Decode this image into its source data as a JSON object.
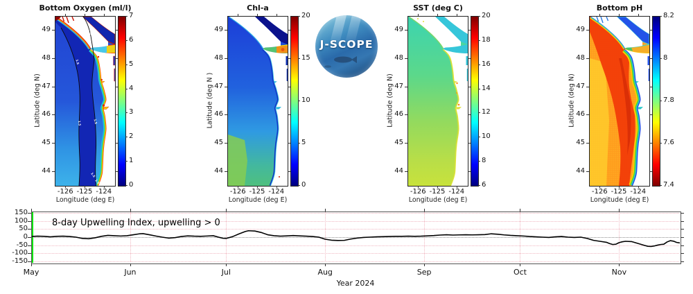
{
  "logo": {
    "text": "J-SCOPE"
  },
  "colors": {
    "jet_colormap": [
      "#00007f",
      "#0000ff",
      "#00ffff",
      "#ffff00",
      "#ff0000",
      "#7f0000"
    ],
    "jet_positions": [
      0,
      12.5,
      37.5,
      62.5,
      87.5,
      100
    ],
    "series_line": "#000000",
    "forecast_start_green": "#00e400",
    "grid_pink": "#f1b6c0",
    "zero_line_gray": "#8c8c8c",
    "axis": "#333333",
    "land": "#ffffff"
  },
  "chart_data": [
    {
      "type": "heatmap",
      "title": "Bottom Oxygen (ml/l)",
      "xlabel": "Longitude (deg E)",
      "ylabel": "Latitude (deg N)",
      "xticks": [
        -126,
        -125,
        -124
      ],
      "yticks": [
        49,
        48,
        47,
        46,
        45,
        44
      ],
      "xlim": [
        -126.55,
        -123.45
      ],
      "ylim": [
        43.5,
        49.5
      ],
      "contour_labels": [
        "1.5"
      ],
      "colorbar": {
        "min": 0,
        "max": 7,
        "tick_values": [
          0,
          1,
          2,
          3,
          4,
          5,
          6,
          7
        ],
        "tick_labels": [
          "0",
          "1",
          "2",
          "3",
          "4",
          "5",
          "6",
          "7"
        ],
        "colormap": "jet",
        "reversed": false
      }
    },
    {
      "type": "heatmap",
      "title": "Chl-a",
      "xlabel": "Longitude (deg E)",
      "ylabel": "Latitude (deg N )",
      "xticks": [
        -126,
        -125,
        -124
      ],
      "yticks": [
        49,
        48,
        47,
        46,
        45,
        44
      ],
      "xlim": [
        -126.55,
        -123.45
      ],
      "ylim": [
        43.5,
        49.5
      ],
      "colorbar": {
        "min": 0,
        "max": 20,
        "tick_values": [
          0,
          5,
          10,
          15,
          20
        ],
        "tick_labels": [
          "0",
          "5",
          "10",
          "15",
          "20"
        ],
        "colormap": "jet",
        "reversed": false
      }
    },
    {
      "type": "heatmap",
      "title": "SST (deg C)",
      "xlabel": "Longitude (deg E)",
      "ylabel": "Latitude (deg N)",
      "xticks": [
        -126,
        -125,
        -124
      ],
      "yticks": [
        49,
        48,
        47,
        46,
        45,
        44
      ],
      "xlim": [
        -126.55,
        -123.45
      ],
      "ylim": [
        43.5,
        49.5
      ],
      "colorbar": {
        "min": 6,
        "max": 20,
        "tick_values": [
          6,
          8,
          10,
          12,
          14,
          16,
          18,
          20
        ],
        "tick_labels": [
          "6",
          "8",
          "10",
          "12",
          "14",
          "16",
          "18",
          "20"
        ],
        "colormap": "jet",
        "reversed": false
      }
    },
    {
      "type": "heatmap",
      "title": "Bottom pH",
      "xlabel": "Longitude (deg E)",
      "ylabel": "Latitude (deg N)",
      "xticks": [
        -126,
        -125,
        -124
      ],
      "yticks": [
        49,
        48,
        47,
        46,
        45,
        44
      ],
      "xlim": [
        -126.55,
        -123.45
      ],
      "ylim": [
        43.5,
        49.5
      ],
      "colorbar": {
        "min": 7.4,
        "max": 8.2,
        "tick_values": [
          7.4,
          7.6,
          7.8,
          8,
          8.2
        ],
        "tick_labels": [
          "7.4",
          "7.6",
          "7.8",
          "8",
          "8.2"
        ],
        "colormap": "jet",
        "reversed": true
      }
    },
    {
      "type": "line",
      "title": "8-day Upwelling Index, upwelling > 0",
      "xlabel": "Year 2024",
      "x_tick_labels": [
        "May",
        "Jun",
        "Jul",
        "Aug",
        "Sep",
        "Oct",
        "Nov"
      ],
      "x_tick_days": [
        0,
        31,
        61,
        92,
        123,
        153,
        184
      ],
      "x_range_days": [
        0,
        203
      ],
      "yticks": [
        150,
        100,
        50,
        0,
        -50,
        -100,
        -150
      ],
      "ylim": [
        -160,
        160
      ],
      "zero_line_dotted": true,
      "forecast_start_day": 0,
      "series": [
        {
          "name": "8-day Upwelling Index",
          "points": [
            [
              0,
              4
            ],
            [
              2,
              6
            ],
            [
              4,
              5
            ],
            [
              6,
              2
            ],
            [
              8,
              5
            ],
            [
              10,
              6
            ],
            [
              12,
              4
            ],
            [
              14,
              0
            ],
            [
              16,
              -8
            ],
            [
              18,
              -10
            ],
            [
              20,
              -4
            ],
            [
              22,
              5
            ],
            [
              24,
              11
            ],
            [
              26,
              9
            ],
            [
              28,
              7
            ],
            [
              30,
              9
            ],
            [
              32,
              15
            ],
            [
              34,
              21
            ],
            [
              35,
              22
            ],
            [
              37,
              15
            ],
            [
              39,
              7
            ],
            [
              41,
              0
            ],
            [
              43,
              -6
            ],
            [
              45,
              -3
            ],
            [
              47,
              4
            ],
            [
              49,
              8
            ],
            [
              51,
              6
            ],
            [
              53,
              5
            ],
            [
              55,
              7
            ],
            [
              57,
              9
            ],
            [
              59,
              -2
            ],
            [
              60,
              -7
            ],
            [
              61,
              -8
            ],
            [
              63,
              3
            ],
            [
              65,
              20
            ],
            [
              67,
              35
            ],
            [
              68,
              40
            ],
            [
              70,
              38
            ],
            [
              72,
              29
            ],
            [
              74,
              15
            ],
            [
              76,
              9
            ],
            [
              78,
              6
            ],
            [
              80,
              8
            ],
            [
              82,
              10
            ],
            [
              84,
              8
            ],
            [
              86,
              6
            ],
            [
              88,
              4
            ],
            [
              90,
              0
            ],
            [
              92,
              -13
            ],
            [
              94,
              -19
            ],
            [
              96,
              -21
            ],
            [
              98,
              -20
            ],
            [
              100,
              -12
            ],
            [
              102,
              -6
            ],
            [
              104,
              -2
            ],
            [
              106,
              0
            ],
            [
              108,
              2
            ],
            [
              110,
              3
            ],
            [
              112,
              4
            ],
            [
              114,
              5
            ],
            [
              116,
              5
            ],
            [
              118,
              6
            ],
            [
              120,
              5
            ],
            [
              122,
              6
            ],
            [
              124,
              8
            ],
            [
              126,
              10
            ],
            [
              128,
              13
            ],
            [
              130,
              15
            ],
            [
              132,
              13
            ],
            [
              134,
              14
            ],
            [
              136,
              15
            ],
            [
              138,
              14
            ],
            [
              140,
              15
            ],
            [
              142,
              16
            ],
            [
              144,
              21
            ],
            [
              146,
              18
            ],
            [
              148,
              14
            ],
            [
              150,
              11
            ],
            [
              152,
              9
            ],
            [
              154,
              7
            ],
            [
              156,
              4
            ],
            [
              158,
              2
            ],
            [
              160,
              0
            ],
            [
              162,
              -2
            ],
            [
              164,
              2
            ],
            [
              166,
              4
            ],
            [
              168,
              0
            ],
            [
              170,
              -2
            ],
            [
              172,
              0
            ],
            [
              174,
              -8
            ],
            [
              176,
              -20
            ],
            [
              178,
              -26
            ],
            [
              180,
              -32
            ],
            [
              181,
              -40
            ],
            [
              182,
              -46
            ],
            [
              183,
              -44
            ],
            [
              184,
              -34
            ],
            [
              185,
              -29
            ],
            [
              186,
              -26
            ],
            [
              188,
              -28
            ],
            [
              190,
              -40
            ],
            [
              192,
              -52
            ],
            [
              193,
              -57
            ],
            [
              194,
              -58
            ],
            [
              195,
              -55
            ],
            [
              196,
              -50
            ],
            [
              197,
              -46
            ],
            [
              198,
              -44
            ],
            [
              199,
              -30
            ],
            [
              200,
              -22
            ],
            [
              201,
              -25
            ],
            [
              202,
              -33
            ],
            [
              203,
              -36
            ]
          ]
        }
      ]
    }
  ]
}
